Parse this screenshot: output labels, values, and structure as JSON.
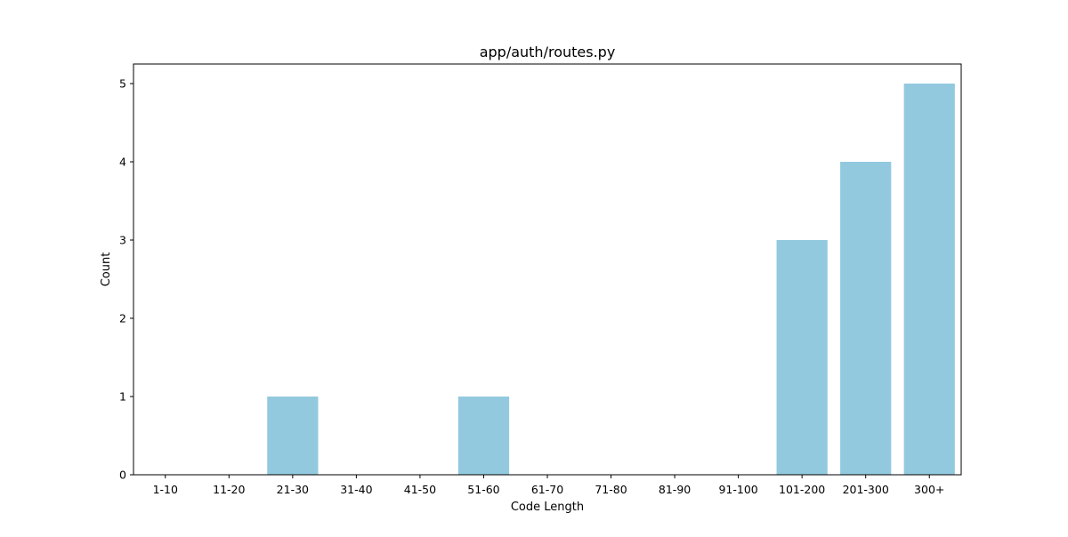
{
  "chart_data": {
    "type": "bar",
    "title": "app/auth/routes.py",
    "xlabel": "Code Length",
    "ylabel": "Count",
    "categories": [
      "1-10",
      "11-20",
      "21-30",
      "31-40",
      "41-50",
      "51-60",
      "61-70",
      "71-80",
      "81-90",
      "91-100",
      "101-200",
      "201-300",
      "300+"
    ],
    "values": [
      0,
      0,
      1,
      0,
      0,
      1,
      0,
      0,
      0,
      0,
      3,
      4,
      5
    ],
    "ylim": [
      0,
      5.25
    ],
    "yticks": [
      0,
      1,
      2,
      3,
      4,
      5
    ],
    "grid": false,
    "bar_color": "#92C9DF"
  }
}
